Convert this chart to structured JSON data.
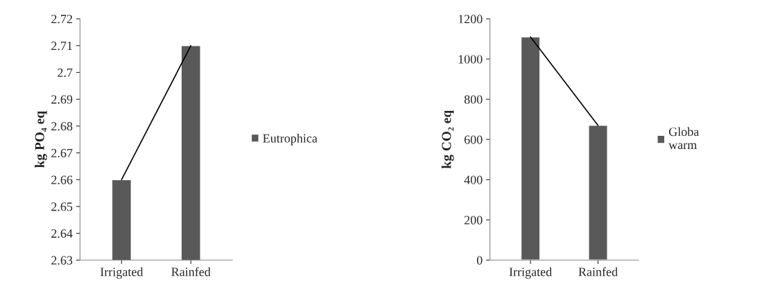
{
  "chart_data": [
    {
      "type": "bar",
      "ylabel": "kg PO₄ eq",
      "categories": [
        "Irrigated",
        "Rainfed"
      ],
      "ylim": [
        2.63,
        2.72
      ],
      "yticks": [
        2.63,
        2.64,
        2.65,
        2.66,
        2.67,
        2.68,
        2.69,
        2.7,
        2.71,
        2.72
      ],
      "grid": false,
      "legend": "right",
      "series": [
        {
          "name": "Eutrophica",
          "color": "#595959",
          "values": [
            2.66,
            2.71
          ]
        },
        {
          "type": "line",
          "color": "#000000",
          "values": [
            2.66,
            2.71
          ]
        }
      ]
    },
    {
      "type": "bar",
      "ylabel": "kg CO₂ eq",
      "categories": [
        "Irrigated",
        "Rainfed"
      ],
      "ylim": [
        0,
        1200
      ],
      "yticks": [
        0,
        200,
        400,
        600,
        800,
        1000,
        1200
      ],
      "grid": false,
      "legend": "right",
      "series": [
        {
          "name": "Globa\nwarm",
          "color": "#595959",
          "values": [
            1110,
            670
          ]
        },
        {
          "type": "line",
          "color": "#000000",
          "values": [
            1110,
            670
          ]
        }
      ]
    }
  ]
}
